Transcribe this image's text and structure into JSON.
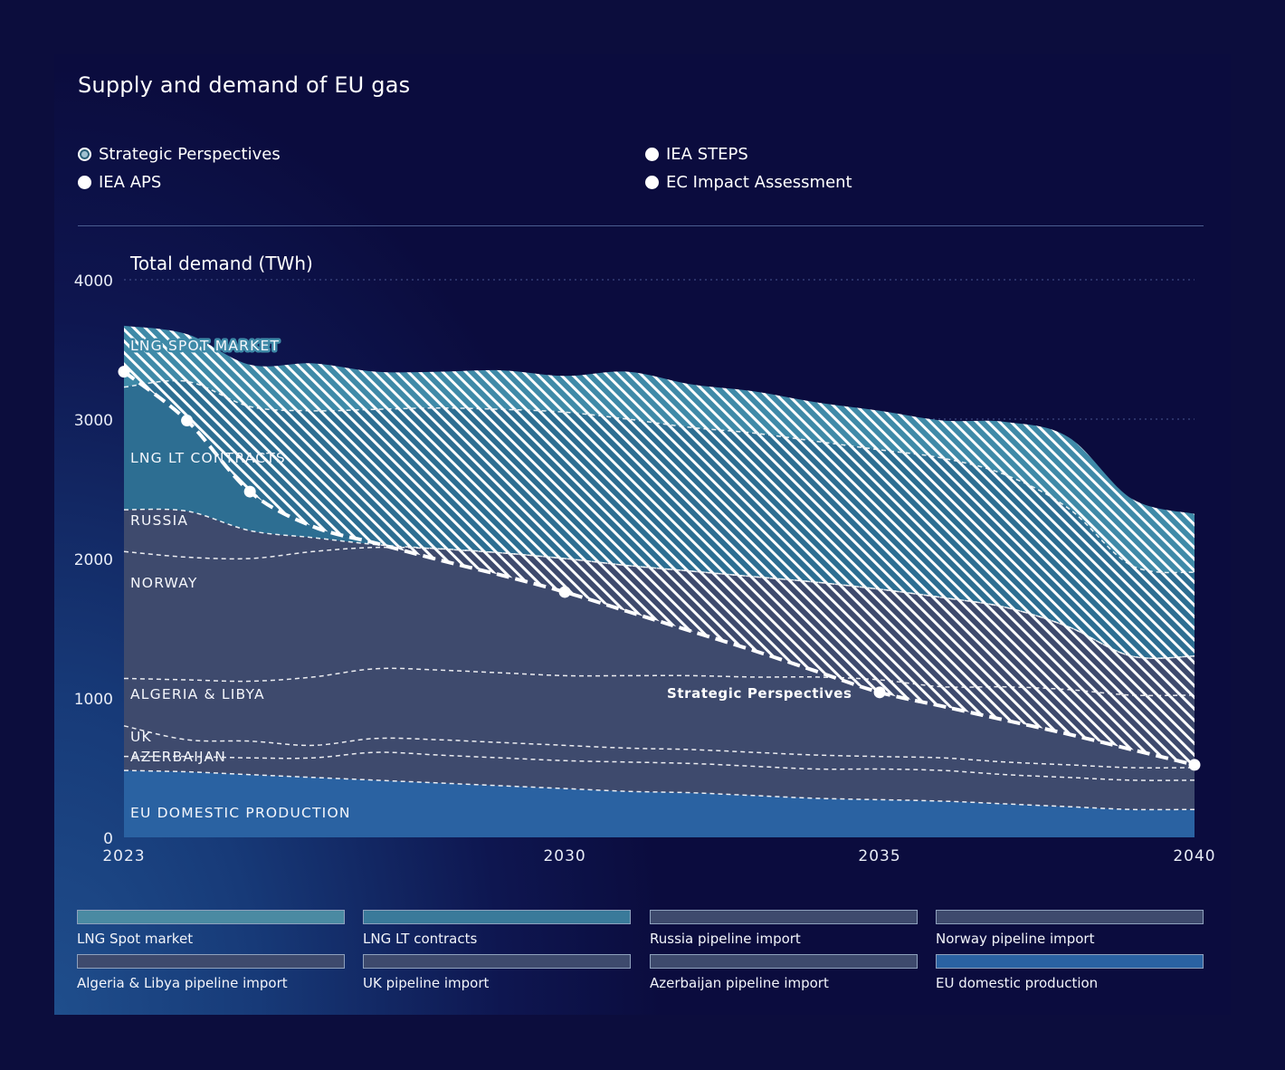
{
  "title": "Supply and demand of EU gas",
  "scenarios": [
    {
      "label": "Strategic Perspectives",
      "selected": true
    },
    {
      "label": "IEA STEPS",
      "selected": false
    },
    {
      "label": "IEA APS",
      "selected": false
    },
    {
      "label": "EC Impact Assessment",
      "selected": false
    }
  ],
  "chart_data": {
    "type": "area",
    "title": "Total demand (TWh)",
    "ylim": [
      0,
      4000
    ],
    "yticks": [
      "0",
      "1000",
      "2000",
      "3000",
      "4000"
    ],
    "xlim": [
      2023,
      2040
    ],
    "xticks": [
      "2023",
      "2030",
      "2035",
      "2040"
    ],
    "x": [
      2023,
      2024,
      2025,
      2026,
      2027,
      2028,
      2029,
      2030,
      2031,
      2032,
      2033,
      2034,
      2035,
      2036,
      2037,
      2038,
      2039,
      2040
    ],
    "series": [
      {
        "name": "EU domestic production",
        "values": [
          480,
          470,
          450,
          430,
          410,
          390,
          370,
          350,
          330,
          320,
          300,
          280,
          270,
          260,
          240,
          220,
          200,
          200
        ]
      },
      {
        "name": "Azerbaijan pipeline import",
        "values": [
          100,
          110,
          120,
          140,
          200,
          200,
          200,
          200,
          210,
          210,
          210,
          210,
          220,
          220,
          210,
          210,
          210,
          210
        ]
      },
      {
        "name": "UK pipeline import",
        "values": [
          220,
          120,
          120,
          90,
          100,
          110,
          110,
          110,
          100,
          100,
          100,
          100,
          90,
          90,
          90,
          90,
          90,
          90
        ]
      },
      {
        "name": "Algeria & Libya pipeline import",
        "values": [
          340,
          430,
          430,
          490,
          500,
          500,
          500,
          500,
          520,
          530,
          540,
          560,
          550,
          510,
          540,
          540,
          520,
          520
        ]
      },
      {
        "name": "Norway pipeline import",
        "values": [
          910,
          880,
          880,
          900,
          870,
          870,
          860,
          840,
          790,
          750,
          720,
          680,
          650,
          640,
          570,
          450,
          280,
          280
        ]
      },
      {
        "name": "Russia pipeline import",
        "values": [
          300,
          330,
          200,
          100,
          20,
          0,
          0,
          0,
          0,
          0,
          0,
          0,
          0,
          0,
          0,
          0,
          0,
          0
        ]
      },
      {
        "name": "LNG LT contracts",
        "values": [
          880,
          930,
          890,
          910,
          970,
          1010,
          1030,
          1050,
          1050,
          1030,
          1030,
          1010,
          1000,
          1000,
          950,
          850,
          650,
          600
        ]
      },
      {
        "name": "LNG Spot market",
        "values": [
          440,
          340,
          300,
          340,
          270,
          260,
          280,
          260,
          340,
          310,
          300,
          280,
          280,
          270,
          380,
          510,
          480,
          420
        ]
      }
    ],
    "demand_line": {
      "name": "Strategic Perspectives",
      "values": [
        3340,
        2990,
        2480,
        2230,
        2110,
        1990,
        1880,
        1760,
        1620,
        1480,
        1340,
        1190,
        1040,
        940,
        840,
        740,
        630,
        520
      ],
      "markers": [
        2023,
        2024,
        2025,
        2030,
        2035,
        2040
      ]
    },
    "area_labels": [
      "LNG SPOT MARKET",
      "LNG LT CONTRACTS",
      "RUSSIA",
      "NORWAY",
      "ALGERIA & LIBYA",
      "UK",
      "AZERBAIJAN",
      "EU DOMESTIC PRODUCTION"
    ],
    "demand_label": "Strategic Perspectives"
  },
  "legend": [
    {
      "label": "LNG Spot market",
      "color": "#4a8aa2"
    },
    {
      "label": "LNG LT contracts",
      "color": "#3a7a9a"
    },
    {
      "label": "Russia pipeline import",
      "color": "#3e4a6d"
    },
    {
      "label": "Norway pipeline import",
      "color": "#3e4a6d"
    },
    {
      "label": "Algeria & Libya pipeline import",
      "color": "#3e4a6d"
    },
    {
      "label": "UK pipeline import",
      "color": "#3e4a6d"
    },
    {
      "label": "Azerbaijan pipeline import",
      "color": "#3e4a6d"
    },
    {
      "label": "EU domestic production",
      "color": "#2a62a2"
    }
  ]
}
